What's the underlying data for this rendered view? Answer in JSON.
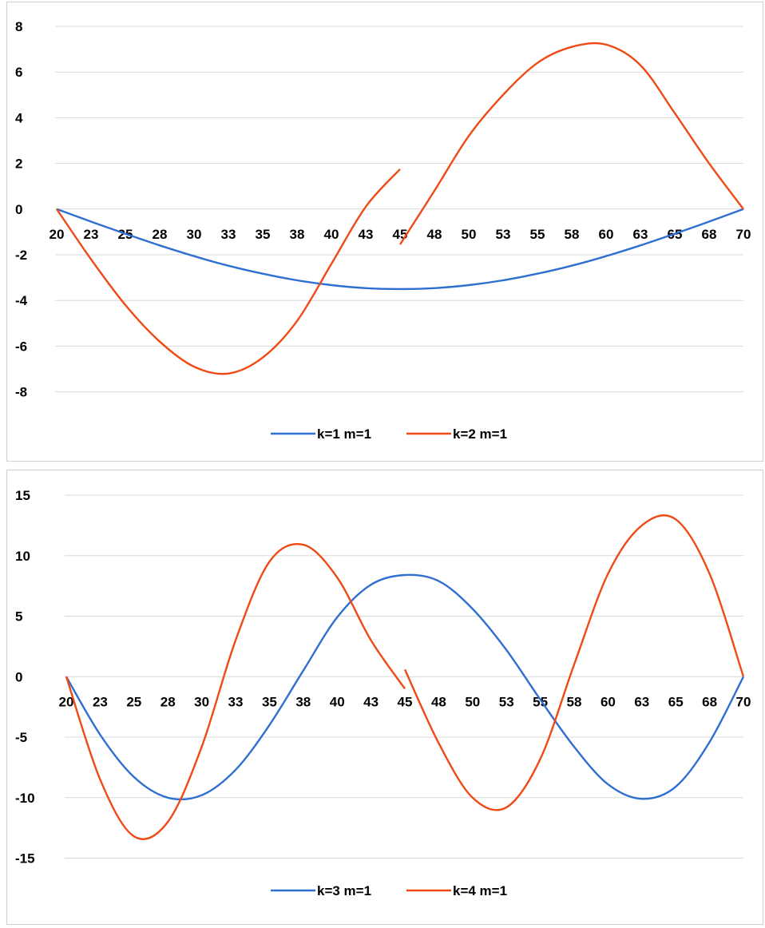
{
  "colors": {
    "series_blue": "#2E6FD1",
    "series_orange": "#F04A14",
    "gridline": "#D9D9D9"
  },
  "chart_data": [
    {
      "type": "line",
      "title": "",
      "xlabel": "",
      "ylabel": "",
      "ylim": [
        -9,
        8
      ],
      "yticks": [
        8,
        6,
        4,
        2,
        0,
        -2,
        -4,
        -6,
        -8
      ],
      "categories": [
        "20",
        "23",
        "25",
        "28",
        "30",
        "33",
        "35",
        "38",
        "40",
        "43",
        "45",
        "48",
        "50",
        "53",
        "55",
        "58",
        "60",
        "63",
        "65",
        "68",
        "70"
      ],
      "grid": true,
      "legend": "bottom",
      "series": [
        {
          "name": "k=1  m=1",
          "color": "#2E6FD1",
          "x": [
            20,
            22.5,
            25,
            27.5,
            30,
            32.5,
            35,
            37.5,
            40,
            42.5,
            45,
            47.5,
            50,
            52.5,
            55,
            57.5,
            60,
            62.5,
            65,
            67.5,
            70
          ],
          "y": [
            0,
            -0.55,
            -1.08,
            -1.59,
            -2.06,
            -2.48,
            -2.83,
            -3.12,
            -3.33,
            -3.46,
            -3.5,
            -3.46,
            -3.33,
            -3.12,
            -2.83,
            -2.48,
            -2.06,
            -1.59,
            -1.08,
            -0.55,
            0
          ]
        },
        {
          "name": "k=2  m=1",
          "color": "#F04A14",
          "segments": [
            {
              "x": [
                20,
                22.5,
                25,
                27.5,
                30,
                32.5,
                35,
                37.5,
                40,
                42.5,
                45
              ],
              "y": [
                0,
                -2.2,
                -4.2,
                -5.8,
                -6.9,
                -7.2,
                -6.5,
                -4.9,
                -2.4,
                0.1,
                1.75
              ]
            },
            {
              "x": [
                45,
                47.5,
                50,
                52.5,
                55,
                57.5,
                60,
                62.5,
                65,
                67.5,
                70
              ],
              "y": [
                -1.55,
                0.8,
                3.2,
                5.0,
                6.4,
                7.1,
                7.2,
                6.3,
                4.2,
                2.0,
                0
              ]
            }
          ]
        }
      ]
    },
    {
      "type": "line",
      "title": "",
      "xlabel": "",
      "ylabel": "",
      "ylim": [
        -18,
        15
      ],
      "yticks": [
        15,
        10,
        5,
        0,
        -5,
        -10,
        -15
      ],
      "categories": [
        "20",
        "23",
        "25",
        "28",
        "30",
        "33",
        "35",
        "38",
        "40",
        "43",
        "45",
        "48",
        "50",
        "53",
        "55",
        "58",
        "60",
        "63",
        "65",
        "68",
        "70"
      ],
      "grid": true,
      "legend": "bottom",
      "series": [
        {
          "name": "k=3  m=1",
          "color": "#2E6FD1",
          "x": [
            20,
            22.5,
            25,
            27.5,
            30,
            32.5,
            35,
            37.5,
            40,
            42.5,
            45,
            47.5,
            50,
            52.5,
            55,
            57.5,
            60,
            62.5,
            65,
            67.5,
            70
          ],
          "y": [
            0,
            -4.8,
            -8.3,
            -10.0,
            -9.8,
            -7.7,
            -4.0,
            0.5,
            4.9,
            7.6,
            8.4,
            7.9,
            5.6,
            2.2,
            -1.9,
            -5.8,
            -8.9,
            -10.1,
            -9.1,
            -5.4,
            0
          ]
        },
        {
          "name": "k=4  m=1",
          "color": "#F04A14",
          "segments": [
            {
              "x": [
                20,
                22.5,
                25,
                27.5,
                30,
                32.5,
                35,
                37.5,
                40,
                42.5,
                45
              ],
              "y": [
                0,
                -8.5,
                -13.2,
                -12.0,
                -5.8,
                3.0,
                9.5,
                10.9,
                8.2,
                3.0,
                -1.0
              ]
            },
            {
              "x": [
                45,
                47.5,
                50,
                52.5,
                55,
                57.5,
                60,
                62.5,
                65,
                67.5,
                70
              ],
              "y": [
                0.6,
                -5.5,
                -10.0,
                -10.8,
                -6.8,
                1.0,
                8.5,
                12.5,
                13.0,
                8.5,
                0
              ]
            }
          ]
        }
      ]
    }
  ]
}
